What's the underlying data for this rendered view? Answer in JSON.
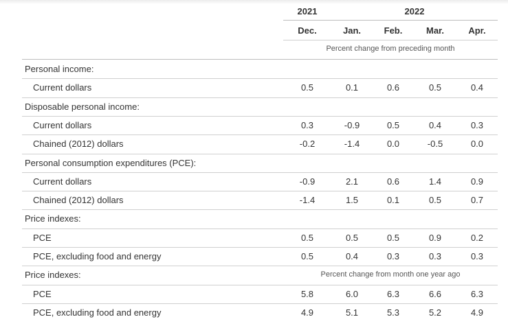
{
  "years": {
    "y2021": "2021",
    "y2022": "2022"
  },
  "months": [
    "Dec.",
    "Jan.",
    "Feb.",
    "Mar.",
    "Apr."
  ],
  "unit_monthly": "Percent change from preceding month",
  "unit_yearly": "Percent change from month one year ago",
  "rows": [
    {
      "kind": "section",
      "label": "Personal income:"
    },
    {
      "kind": "item",
      "label": "Current dollars",
      "values": [
        "0.5",
        "0.1",
        "0.6",
        "0.5",
        "0.4"
      ]
    },
    {
      "kind": "section",
      "label": "Disposable personal income:"
    },
    {
      "kind": "item",
      "label": "Current dollars",
      "values": [
        "0.3",
        "-0.9",
        "0.5",
        "0.4",
        "0.3"
      ]
    },
    {
      "kind": "item",
      "label": "Chained (2012) dollars",
      "values": [
        "-0.2",
        "-1.4",
        "0.0",
        "-0.5",
        "0.0"
      ]
    },
    {
      "kind": "section",
      "label": "Personal consumption expenditures (PCE):"
    },
    {
      "kind": "item",
      "label": "Current dollars",
      "values": [
        "-0.9",
        "2.1",
        "0.6",
        "1.4",
        "0.9"
      ]
    },
    {
      "kind": "item",
      "label": "Chained (2012) dollars",
      "values": [
        "-1.4",
        "1.5",
        "0.1",
        "0.5",
        "0.7"
      ]
    },
    {
      "kind": "section",
      "label": "Price indexes:"
    },
    {
      "kind": "item",
      "label": "PCE",
      "values": [
        "0.5",
        "0.5",
        "0.5",
        "0.9",
        "0.2"
      ]
    },
    {
      "kind": "item",
      "label": "PCE, excluding food and energy",
      "values": [
        "0.5",
        "0.4",
        "0.3",
        "0.3",
        "0.3"
      ]
    },
    {
      "kind": "section",
      "label": "Price indexes:"
    },
    {
      "kind": "item",
      "label": "PCE",
      "values": [
        "5.8",
        "6.0",
        "6.3",
        "6.6",
        "6.3"
      ]
    },
    {
      "kind": "item",
      "label": "PCE, excluding food and energy",
      "values": [
        "4.9",
        "5.1",
        "5.3",
        "5.2",
        "4.9"
      ]
    }
  ]
}
